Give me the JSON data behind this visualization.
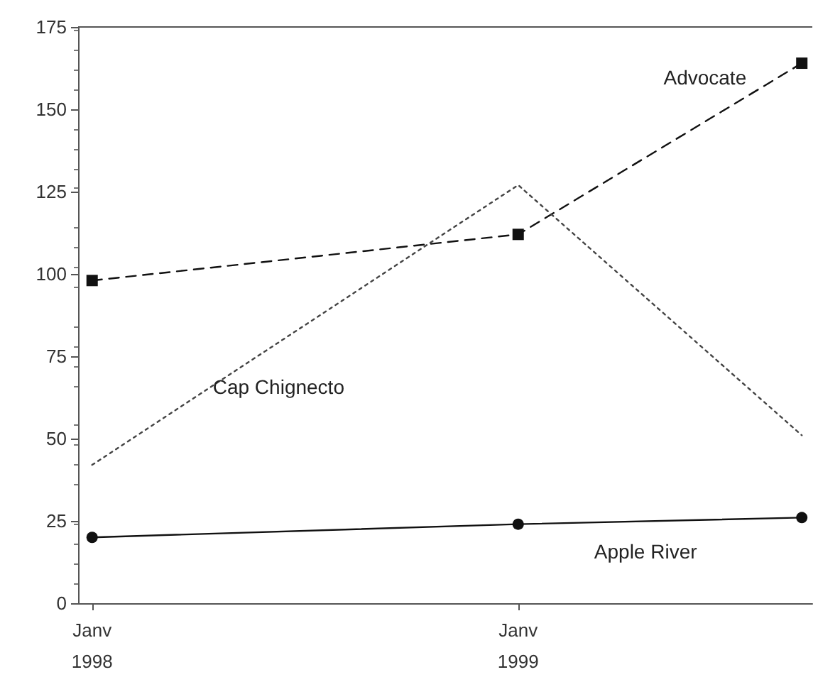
{
  "chart_data": {
    "type": "line",
    "x": [
      "1998-01",
      "1999-01",
      "1999-09"
    ],
    "xlim": [
      "1997-12-20",
      "1999-09-10"
    ],
    "xticks": [
      {
        "value": "1998-01",
        "label": "Janv\n1998"
      },
      {
        "value": "1999-01",
        "label": "Janv\n1999"
      }
    ],
    "ylim": [
      0,
      175
    ],
    "yticks": [
      0,
      25,
      50,
      75,
      100,
      125,
      150,
      175
    ],
    "grid": false,
    "legend": false,
    "series": [
      {
        "name": "Advocate",
        "color": "#111111",
        "values": [
          98,
          112,
          164
        ],
        "marker": "square",
        "line_style": "dashed"
      },
      {
        "name": "Cap Chignecto",
        "color": "#444444",
        "values": [
          42,
          127,
          51
        ],
        "marker": "none",
        "line_style": "dotted"
      },
      {
        "name": "Apple River",
        "color": "#111111",
        "values": [
          20,
          24,
          26
        ],
        "marker": "circle",
        "line_style": "solid"
      }
    ]
  }
}
